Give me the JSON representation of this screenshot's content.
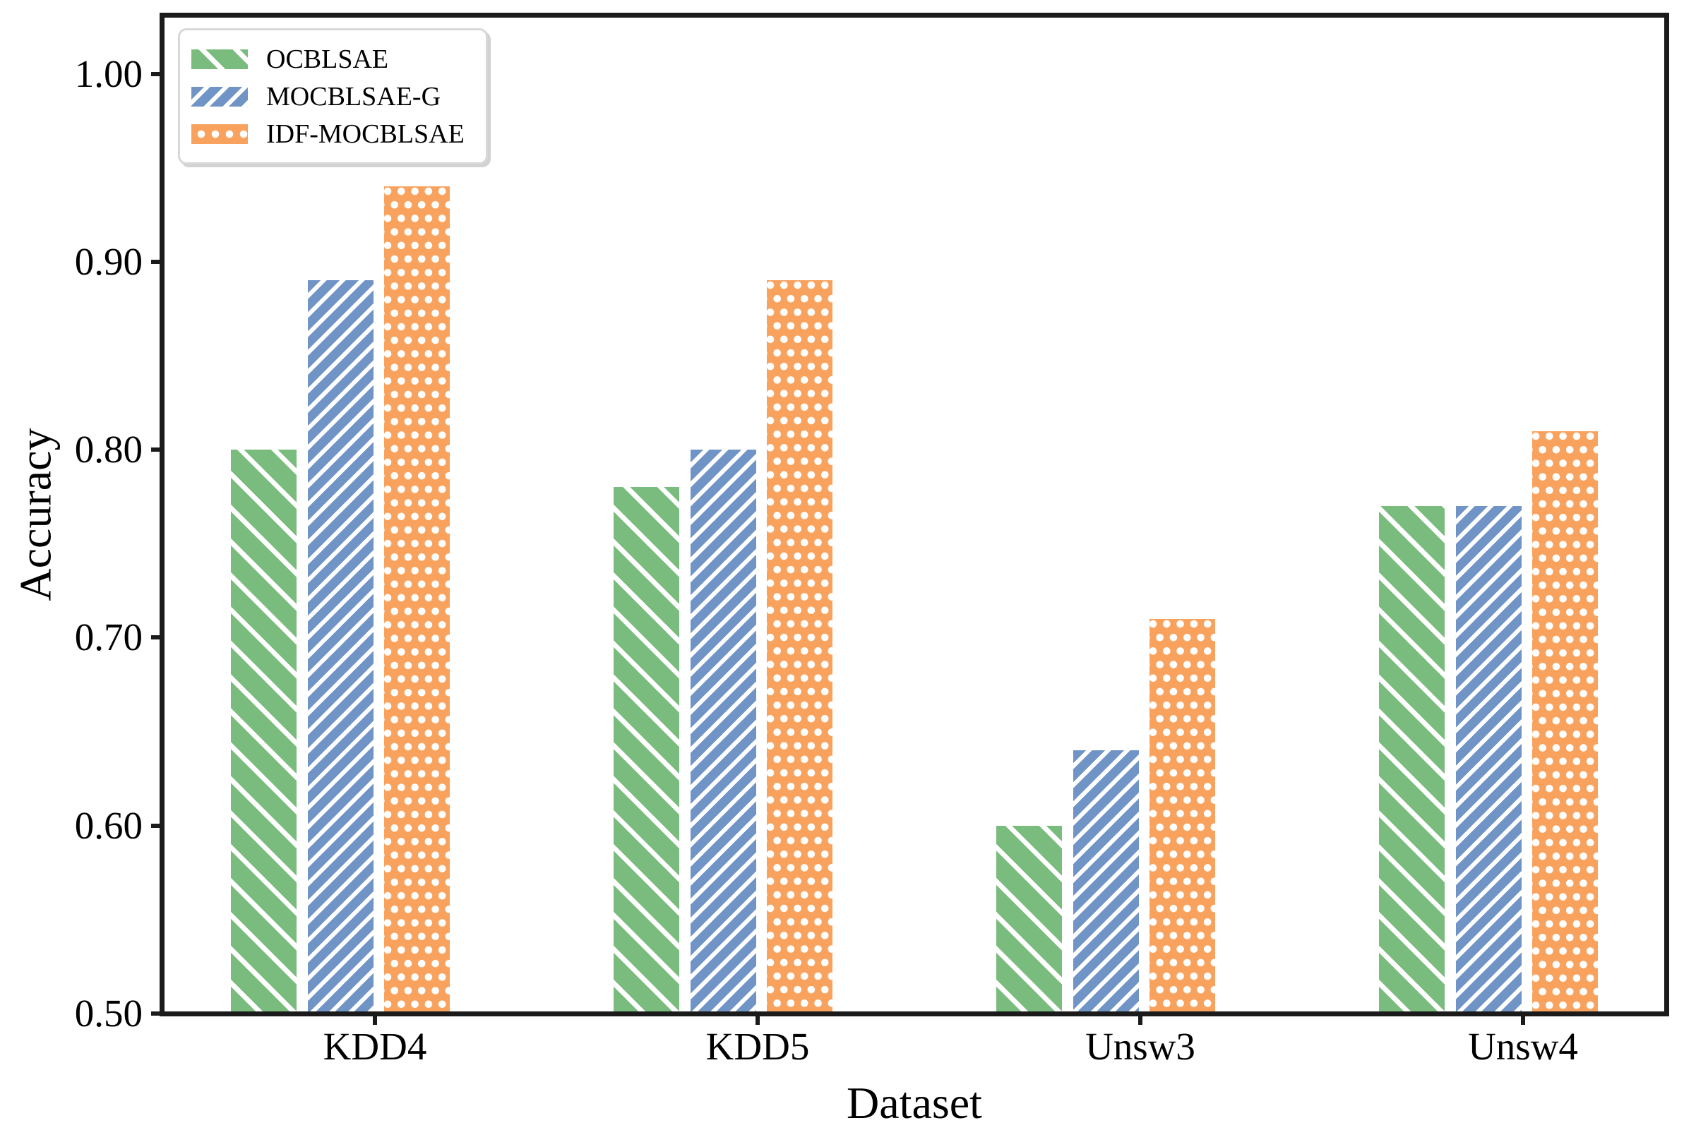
{
  "chart_data": {
    "type": "bar",
    "title": "",
    "xlabel": "Dataset",
    "ylabel": "Accuracy",
    "categories": [
      "KDD4",
      "KDD5",
      "Unsw3",
      "Unsw4"
    ],
    "series": [
      {
        "name": "OCBLSAE",
        "color": "#7abc7d",
        "hatch": "\\\\",
        "pattern": "diagonal-down",
        "values": [
          0.8,
          0.78,
          0.6,
          0.77
        ]
      },
      {
        "name": "MOCBLSAE-G",
        "color": "#7094c6",
        "hatch": "//",
        "pattern": "diagonal-up",
        "values": [
          0.89,
          0.8,
          0.64,
          0.77
        ]
      },
      {
        "name": "IDF-MOCBLSAE",
        "color": "#f8a25e",
        "hatch": "..",
        "pattern": "dots",
        "values": [
          0.94,
          0.89,
          0.71,
          0.81
        ]
      }
    ],
    "hatch_color": "#ffffff",
    "y_ticks": [
      "0.50",
      "0.60",
      "0.70",
      "0.80",
      "0.90",
      "1.00"
    ],
    "y_tick_values": [
      0.5,
      0.6,
      0.7,
      0.8,
      0.9,
      1.0
    ],
    "ylim": [
      0.5,
      1.031
    ],
    "grid": false,
    "legend_position": "upper-left",
    "spine_color": "#1b1b1b",
    "text_color": "#000000"
  }
}
